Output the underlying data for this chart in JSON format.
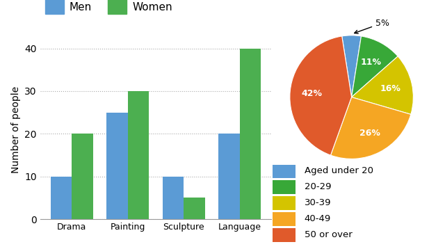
{
  "bar_categories": [
    "Drama",
    "Painting",
    "Sculpture",
    "Language"
  ],
  "men_values": [
    10,
    25,
    10,
    20
  ],
  "women_values": [
    20,
    30,
    5,
    40
  ],
  "men_color": "#5B9BD5",
  "women_color": "#4CAF50",
  "bar_ylabel": "Number of people",
  "bar_yticks": [
    0,
    10,
    20,
    30,
    40
  ],
  "bar_ylim": [
    0,
    42
  ],
  "legend_labels": [
    "Men",
    "Women"
  ],
  "pie_sizes": [
    5,
    11,
    16,
    26,
    42
  ],
  "pie_labels": [
    "",
    "11%",
    "16%",
    "26%",
    "42%"
  ],
  "pie_outside_label": "5%",
  "pie_colors": [
    "#5B9BD5",
    "#3DAA3D",
    "#D4C f00",
    "#F5A623",
    "#E05A2B"
  ],
  "pie_colors_actual": [
    "#5B9BD5",
    "#38A838",
    "#D4C400",
    "#F5A623",
    "#E05A2B"
  ],
  "pie_legend_labels": [
    "Aged under 20",
    "20-29",
    "30-39",
    "40-49",
    "50 or over"
  ],
  "pie_legend_colors": [
    "#5B9BD5",
    "#38A838",
    "#D4C400",
    "#F5A623",
    "#E05A2B"
  ],
  "background_color": "#ffffff"
}
